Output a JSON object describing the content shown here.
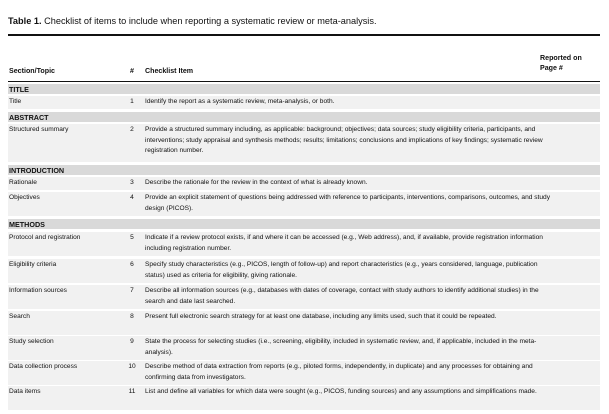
{
  "caption": {
    "label": "Table 1.",
    "text": " Checklist of items to include when reporting a systematic review or meta-analysis."
  },
  "headers": {
    "section_topic": "Section/Topic",
    "number": "#",
    "checklist_item": "Checklist Item",
    "reported_line1": "Reported on",
    "reported_line2": "Page #"
  },
  "sections": [
    {
      "title": "TITLE"
    },
    {
      "title": "ABSTRACT"
    },
    {
      "title": "INTRODUCTION"
    },
    {
      "title": "METHODS"
    }
  ],
  "rows": [
    {
      "topic": "Title",
      "num": "1",
      "item": "Identify the report as a systematic review, meta-analysis, or both."
    },
    {
      "topic": "Structured summary",
      "num": "2",
      "item": "Provide a structured summary including, as applicable: background; objectives; data sources; study eligibility criteria, participants, and interventions; study appraisal and synthesis methods; results; limitations; conclusions and implications of key findings; systematic review registration number."
    },
    {
      "topic": "Rationale",
      "num": "3",
      "item": "Describe the rationale for the review in the context of what is already known."
    },
    {
      "topic": "Objectives",
      "num": "4",
      "item": "Provide an explicit statement of questions being addressed with reference to participants, interventions, comparisons, outcomes, and study design (PICOS)."
    },
    {
      "topic": "Protocol and registration",
      "num": "5",
      "item": "Indicate if a review protocol exists, if and where it can be accessed (e.g., Web address), and, if available, provide registration information including registration number."
    },
    {
      "topic": "Eligibility criteria",
      "num": "6",
      "item": "Specify study characteristics (e.g., PICOS, length of follow-up) and report characteristics (e.g., years considered, language, publication status) used as criteria for eligibility, giving rationale."
    },
    {
      "topic": "Information sources",
      "num": "7",
      "item": "Describe all information sources (e.g., databases with dates of coverage, contact with study authors to identify additional studies) in the search and date last searched."
    },
    {
      "topic": "Search",
      "num": "8",
      "item": "Present full electronic search strategy for at least one database, including any limits used, such that it could be repeated."
    },
    {
      "topic": "Study selection",
      "num": "9",
      "item": "State the process for selecting studies (i.e., screening, eligibility, included in systematic review, and, if applicable, included in the meta-analysis)."
    },
    {
      "topic": "Data collection process",
      "num": "10",
      "item": "Describe method of data extraction from reports (e.g., piloted forms, independently, in duplicate) and any processes for obtaining and confirming data from investigators."
    },
    {
      "topic": "Data items",
      "num": "11",
      "item": "List and define all variables for which data were sought (e.g., PICOS, funding sources) and any assumptions and simplifications made."
    }
  ]
}
